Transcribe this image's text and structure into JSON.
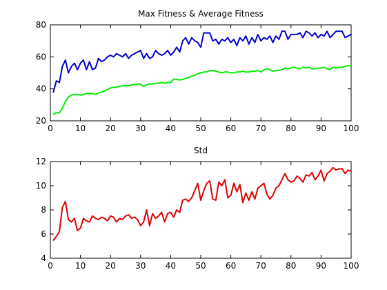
{
  "chart_data": [
    {
      "type": "line",
      "title": "Max Fitness & Average Fitness",
      "xlabel": "",
      "ylabel": "",
      "xlim": [
        0,
        100
      ],
      "ylim": [
        20,
        80
      ],
      "xticks": [
        0,
        10,
        20,
        30,
        40,
        50,
        60,
        70,
        80,
        90,
        100
      ],
      "yticks": [
        20,
        40,
        60,
        80
      ],
      "grid": false,
      "series": [
        {
          "color": "#0000cc",
          "x": [
            1,
            2,
            3,
            4,
            5,
            6,
            7,
            8,
            9,
            10,
            11,
            12,
            13,
            14,
            15,
            16,
            17,
            18,
            19,
            20,
            21,
            22,
            23,
            24,
            25,
            26,
            27,
            28,
            29,
            30,
            31,
            32,
            33,
            34,
            35,
            36,
            37,
            38,
            39,
            40,
            41,
            42,
            43,
            44,
            45,
            46,
            47,
            48,
            49,
            50,
            51,
            52,
            53,
            54,
            55,
            56,
            57,
            58,
            59,
            60,
            61,
            62,
            63,
            64,
            65,
            66,
            67,
            68,
            69,
            70,
            71,
            72,
            73,
            74,
            75,
            76,
            77,
            78,
            79,
            80,
            81,
            82,
            83,
            84,
            85,
            86,
            87,
            88,
            89,
            90,
            91,
            92,
            93,
            94,
            95,
            96,
            97,
            98,
            99,
            100
          ],
          "values": [
            38,
            45,
            44,
            54,
            58,
            50,
            54,
            56,
            52,
            56,
            58,
            52,
            57,
            52,
            53,
            59,
            57,
            58,
            60,
            61,
            60,
            62,
            61,
            60,
            62,
            59,
            61,
            62,
            63,
            64,
            59,
            62,
            59,
            60,
            64,
            62,
            61,
            62,
            64,
            61,
            63,
            66,
            63,
            70,
            72,
            68,
            72,
            70,
            69,
            66,
            75,
            75,
            75,
            70,
            71,
            68,
            71,
            70,
            72,
            69,
            71,
            67,
            72,
            70,
            73,
            68,
            72,
            69,
            74,
            70,
            72,
            71,
            73,
            69,
            73,
            71,
            76,
            76,
            71,
            74,
            74,
            74,
            75,
            72,
            76,
            75,
            73,
            75,
            72,
            74,
            73,
            76,
            72,
            74,
            76,
            76,
            76,
            72,
            73,
            74
          ]
        },
        {
          "color": "#00ee00",
          "x": [
            1,
            2,
            3,
            4,
            5,
            6,
            7,
            8,
            9,
            10,
            11,
            12,
            13,
            14,
            15,
            16,
            17,
            18,
            19,
            20,
            21,
            22,
            23,
            24,
            25,
            26,
            27,
            28,
            29,
            30,
            31,
            32,
            33,
            34,
            35,
            36,
            37,
            38,
            39,
            40,
            41,
            42,
            43,
            44,
            45,
            46,
            47,
            48,
            49,
            50,
            51,
            52,
            53,
            54,
            55,
            56,
            57,
            58,
            59,
            60,
            61,
            62,
            63,
            64,
            65,
            66,
            67,
            68,
            69,
            70,
            71,
            72,
            73,
            74,
            75,
            76,
            77,
            78,
            79,
            80,
            81,
            82,
            83,
            84,
            85,
            86,
            87,
            88,
            89,
            90,
            91,
            92,
            93,
            94,
            95,
            96,
            97,
            98,
            99,
            100
          ],
          "values": [
            24,
            25,
            25,
            28,
            32,
            35,
            36,
            36.5,
            36.5,
            36,
            36.5,
            37,
            37,
            37,
            36.5,
            37.5,
            38,
            38.5,
            39.5,
            40.5,
            41,
            41,
            41.5,
            42,
            42,
            42,
            42.5,
            42.5,
            43,
            43,
            41.5,
            42.5,
            43,
            43,
            43.5,
            43.5,
            44,
            43.5,
            44,
            44,
            46,
            46,
            45.5,
            46,
            46.5,
            47,
            48,
            48.5,
            49.5,
            50,
            50.5,
            50.5,
            51.5,
            51.5,
            51,
            50.5,
            50,
            50.5,
            50.5,
            50,
            50,
            50.5,
            50.5,
            51,
            50.5,
            50.5,
            51,
            51,
            51.5,
            50.5,
            52,
            52.5,
            52,
            51,
            51.5,
            51.5,
            52,
            53,
            52.5,
            53,
            53.5,
            53,
            52.5,
            53.5,
            53,
            53.5,
            52.5,
            52.5,
            53,
            53,
            53.5,
            52.5,
            52,
            53.5,
            53,
            53.5,
            53.5,
            54,
            54.5,
            54.5
          ]
        }
      ]
    },
    {
      "type": "line",
      "title": "Std",
      "xlabel": "",
      "ylabel": "",
      "xlim": [
        0,
        100
      ],
      "ylim": [
        4,
        12
      ],
      "xticks": [
        0,
        10,
        20,
        30,
        40,
        50,
        60,
        70,
        80,
        90,
        100
      ],
      "yticks": [
        4,
        6,
        8,
        10,
        12
      ],
      "grid": false,
      "series": [
        {
          "color": "#dd0000",
          "x": [
            1,
            2,
            3,
            4,
            5,
            6,
            7,
            8,
            9,
            10,
            11,
            12,
            13,
            14,
            15,
            16,
            17,
            18,
            19,
            20,
            21,
            22,
            23,
            24,
            25,
            26,
            27,
            28,
            29,
            30,
            31,
            32,
            33,
            34,
            35,
            36,
            37,
            38,
            39,
            40,
            41,
            42,
            43,
            44,
            45,
            46,
            47,
            48,
            49,
            50,
            51,
            52,
            53,
            54,
            55,
            56,
            57,
            58,
            59,
            60,
            61,
            62,
            63,
            64,
            65,
            66,
            67,
            68,
            69,
            70,
            71,
            72,
            73,
            74,
            75,
            76,
            77,
            78,
            79,
            80,
            81,
            82,
            83,
            84,
            85,
            86,
            87,
            88,
            89,
            90,
            91,
            92,
            93,
            94,
            95,
            96,
            97,
            98,
            99,
            100
          ],
          "values": [
            5.5,
            5.8,
            6.2,
            8.2,
            8.7,
            7.2,
            7.0,
            7.3,
            6.3,
            6.5,
            7.3,
            7.1,
            7.0,
            7.5,
            7.3,
            7.2,
            7.4,
            7.3,
            7.1,
            7.5,
            7.4,
            7.0,
            7.3,
            7.2,
            7.5,
            7.6,
            7.3,
            7.4,
            7.2,
            6.7,
            7.0,
            8.0,
            6.7,
            7.7,
            7.3,
            7.5,
            7.8,
            7.0,
            7.7,
            7.8,
            7.4,
            8.0,
            7.8,
            8.8,
            8.9,
            8.7,
            9.0,
            9.6,
            10.2,
            8.8,
            9.6,
            10.2,
            10.4,
            8.9,
            8.8,
            10.3,
            10.0,
            10.5,
            9.0,
            9.2,
            10.2,
            9.5,
            10.1,
            8.6,
            9.4,
            8.8,
            9.5,
            8.9,
            9.8,
            10.0,
            10.2,
            9.3,
            8.9,
            9.2,
            9.8,
            10.0,
            10.5,
            11.0,
            10.5,
            10.3,
            10.4,
            10.8,
            10.6,
            10.3,
            10.9,
            10.8,
            11.1,
            10.5,
            10.8,
            11.3,
            10.4,
            11.0,
            11.2,
            11.5,
            11.3,
            11.4,
            11.4,
            11.0,
            11.3,
            11.2
          ]
        }
      ]
    }
  ]
}
